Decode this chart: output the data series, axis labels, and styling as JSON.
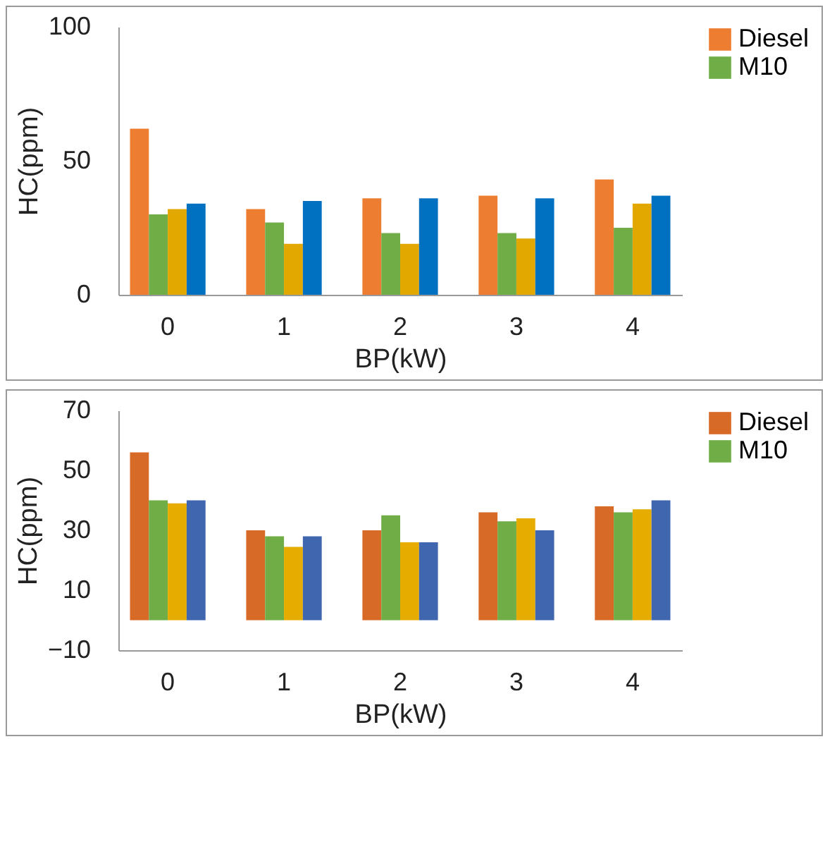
{
  "chart_data": [
    {
      "type": "bar",
      "xlabel": "BP(kW)",
      "ylabel": "HC(ppm)",
      "categories": [
        "0",
        "1",
        "2",
        "3",
        "4"
      ],
      "ylim": [
        0,
        100
      ],
      "yticks": [
        0,
        50,
        100
      ],
      "grid": false,
      "legend": "right",
      "series": [
        {
          "name": "Diesel",
          "color": "#ed7d31",
          "values": [
            62,
            32,
            36,
            37,
            43
          ]
        },
        {
          "name": "M10",
          "color": "#70ad47",
          "values": [
            30,
            27,
            23,
            23,
            25
          ]
        },
        {
          "color": "#e3a800",
          "values": [
            32,
            19,
            19,
            21,
            34
          ]
        },
        {
          "color": "#0070c0",
          "values": [
            34,
            35,
            36,
            36,
            37
          ]
        }
      ]
    },
    {
      "type": "bar",
      "xlabel": "BP(kW)",
      "ylabel": "HC(ppm)",
      "categories": [
        "0",
        "1",
        "2",
        "3",
        "4"
      ],
      "ylim": [
        -10,
        70
      ],
      "yticks": [
        -10,
        10,
        30,
        50,
        70
      ],
      "grid": false,
      "legend": "right",
      "series": [
        {
          "name": "Diesel",
          "color": "#d86a28",
          "values": [
            56,
            30,
            30,
            36,
            38
          ]
        },
        {
          "name": "M10",
          "color": "#70ad47",
          "values": [
            40,
            28,
            35,
            33,
            36
          ]
        },
        {
          "color": "#e6ac00",
          "values": [
            39,
            24.5,
            26,
            34,
            37
          ]
        },
        {
          "color": "#4166b0",
          "values": [
            40,
            28,
            26,
            30,
            40
          ]
        }
      ]
    }
  ]
}
